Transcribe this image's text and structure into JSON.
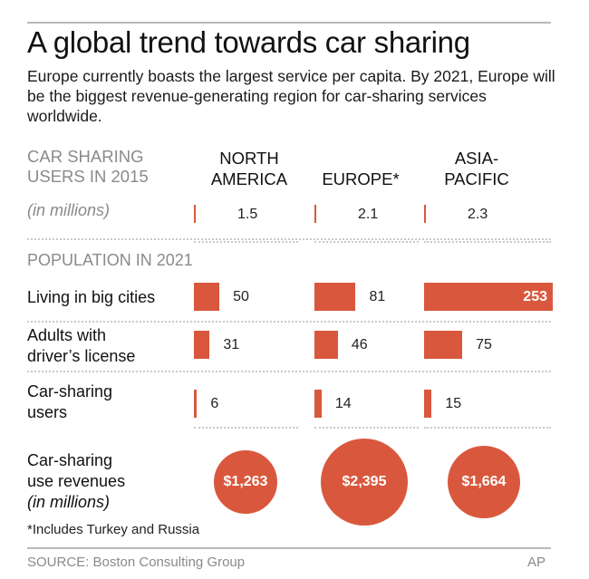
{
  "title": "A global trend towards car sharing",
  "subtitle": "Europe currently boasts the largest service per capita. By 2021, Europe will be the biggest revenue-generating region for car-sharing services worldwide.",
  "users_header": [
    "CAR SHARING",
    "USERS IN 2015"
  ],
  "units": "(in millions)",
  "population_header": "POPULATION IN 2021",
  "footnote": "*Includes Turkey and Russia",
  "source": "SOURCE: Boston Consulting Group",
  "credit": "AP",
  "colors": {
    "accent": "#d9583d",
    "text": "#1a1a1a",
    "muted": "#8a8a8a"
  },
  "chart_data": {
    "type": "bar",
    "title": "A global trend towards car sharing",
    "categories": [
      "NORTH AMERICA",
      "EUROPE*",
      "ASIA-PACIFIC"
    ],
    "region_labels": [
      [
        "NORTH",
        "AMERICA"
      ],
      [
        "EUROPE*"
      ],
      [
        "ASIA-",
        "PACIFIC"
      ]
    ],
    "users_2015": [
      1.5,
      2.1,
      2.3
    ],
    "users_2015_labels": [
      "1.5",
      "2.1",
      "2.3"
    ],
    "rows": [
      {
        "label_lines": [
          "Living in big cities"
        ],
        "values": [
          50,
          81,
          253
        ],
        "value_labels": [
          "50",
          "81",
          "253"
        ]
      },
      {
        "label_lines": [
          "Adults with",
          "driver’s license"
        ],
        "values": [
          31,
          46,
          75
        ],
        "value_labels": [
          "31",
          "46",
          "75"
        ]
      },
      {
        "label_lines": [
          "Car-sharing",
          "users"
        ],
        "values": [
          6,
          14,
          15
        ],
        "value_labels": [
          "6",
          "14",
          "15"
        ]
      }
    ],
    "revenues": {
      "label_lines": [
        "Car-sharing",
        "use revenues"
      ],
      "units": "(in millions)",
      "values": [
        1263,
        2395,
        1664
      ],
      "value_labels": [
        "$1,263",
        "$2,395",
        "$1,664"
      ]
    }
  }
}
